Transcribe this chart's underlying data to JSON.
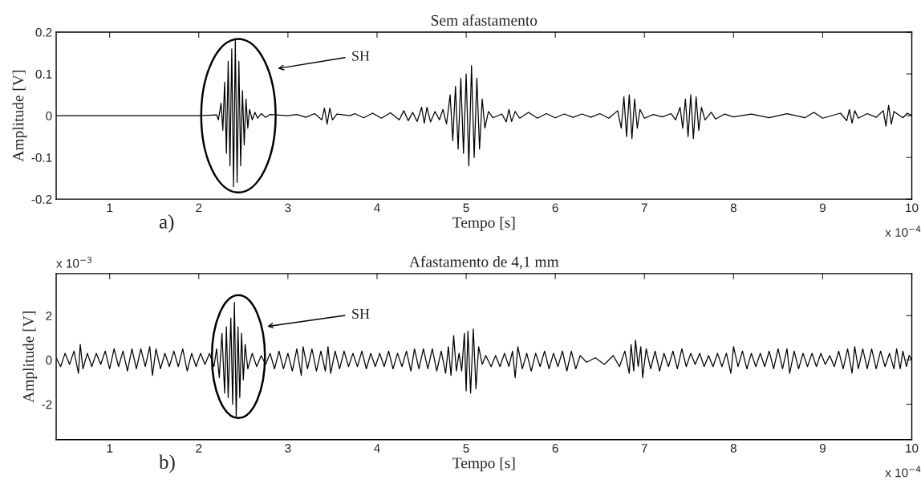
{
  "chart_data": [
    {
      "type": "line",
      "title": "Sem afastamento",
      "xlabel": "Tempo [s]",
      "ylabel": "Amplitude [V]",
      "xlim": [
        0.4,
        10
      ],
      "xticks": [
        1,
        2,
        3,
        4,
        5,
        6,
        7,
        8,
        9,
        10
      ],
      "ylim": [
        -0.2,
        0.2
      ],
      "yticks": [
        -0.2,
        -0.1,
        0,
        0.1,
        0.2
      ],
      "grid": false,
      "legend": false,
      "annotations": [
        "a)",
        "x 10$^{−4}$",
        "SH"
      ],
      "series": [
        {
          "color": "#000000",
          "x": [
            0.4,
            2.0,
            2.2,
            2.22,
            2.25,
            2.27,
            2.29,
            2.31,
            2.33,
            2.35,
            2.37,
            2.39,
            2.41,
            2.43,
            2.45,
            2.47,
            2.49,
            2.51,
            2.53,
            2.55,
            2.57,
            2.6,
            2.63,
            2.66,
            2.7,
            2.75,
            2.8,
            3.0,
            3.1,
            3.2,
            3.3,
            3.38,
            3.41,
            3.44,
            3.47,
            3.5,
            3.55,
            3.7,
            3.75,
            3.85,
            3.95,
            4.05,
            4.15,
            4.25,
            4.3,
            4.35,
            4.4,
            4.45,
            4.5,
            4.53,
            4.56,
            4.6,
            4.65,
            4.7,
            4.74,
            4.78,
            4.82,
            4.85,
            4.88,
            4.91,
            4.94,
            4.97,
            5.0,
            5.03,
            5.06,
            5.09,
            5.12,
            5.15,
            5.18,
            5.21,
            5.25,
            5.3,
            5.4,
            5.45,
            5.48,
            5.51,
            5.55,
            5.6,
            5.7,
            5.8,
            5.9,
            6.0,
            6.1,
            6.2,
            6.3,
            6.4,
            6.5,
            6.6,
            6.7,
            6.74,
            6.77,
            6.8,
            6.83,
            6.86,
            6.89,
            6.92,
            6.95,
            7.0,
            7.1,
            7.2,
            7.3,
            7.35,
            7.4,
            7.43,
            7.46,
            7.49,
            7.52,
            7.55,
            7.58,
            7.61,
            7.64,
            7.68,
            7.75,
            7.8,
            7.9,
            8.0,
            8.2,
            8.4,
            8.6,
            8.8,
            8.9,
            9.0,
            9.2,
            9.27,
            9.3,
            9.33,
            9.36,
            9.4,
            9.5,
            9.6,
            9.68,
            9.71,
            9.74,
            9.77,
            9.8,
            9.9,
            9.95,
            10
          ],
          "values": [
            0,
            0,
            0.002,
            -0.01,
            0.03,
            -0.035,
            0.08,
            -0.09,
            0.13,
            -0.12,
            0.16,
            -0.17,
            0.18,
            -0.16,
            0.13,
            -0.12,
            0.06,
            -0.07,
            0.04,
            -0.03,
            0.015,
            -0.01,
            0.008,
            -0.006,
            0.005,
            -0.004,
            0.003,
            0,
            0.003,
            -0.004,
            0.005,
            -0.01,
            0.018,
            -0.02,
            0.018,
            -0.01,
            0.004,
            0,
            0.005,
            -0.005,
            0.006,
            -0.006,
            0.007,
            -0.01,
            0.012,
            -0.012,
            0.008,
            -0.014,
            0.02,
            -0.018,
            0.02,
            -0.015,
            0.01,
            -0.01,
            0.015,
            -0.02,
            0.05,
            -0.06,
            0.07,
            -0.08,
            0.09,
            -0.09,
            0.1,
            -0.12,
            0.12,
            -0.1,
            0.09,
            -0.08,
            0.04,
            -0.03,
            0.01,
            -0.005,
            0.004,
            -0.015,
            0.015,
            -0.014,
            0.01,
            -0.006,
            0.008,
            -0.006,
            0.005,
            -0.005,
            0.004,
            -0.004,
            0.004,
            -0.004,
            0.005,
            -0.006,
            0.012,
            -0.03,
            0.045,
            -0.05,
            0.05,
            -0.055,
            0.04,
            -0.03,
            0.015,
            -0.006,
            0.003,
            -0.003,
            0.005,
            -0.01,
            0.02,
            -0.03,
            0.04,
            -0.05,
            0.05,
            -0.055,
            0.045,
            -0.035,
            0.02,
            -0.01,
            0.008,
            -0.008,
            0.004,
            -0.003,
            0.004,
            -0.005,
            0.005,
            -0.005,
            0.008,
            -0.006,
            0.006,
            -0.012,
            0.015,
            -0.018,
            0.012,
            -0.006,
            0.005,
            -0.004,
            0.012,
            -0.025,
            0.025,
            -0.02,
            0.01,
            -0.005,
            0.006,
            0
          ]
        }
      ]
    },
    {
      "type": "line",
      "title": "Afastamento de 4,1 mm",
      "xlabel": "Tempo [s]",
      "ylabel": "Amplitude [V]",
      "xlim": [
        0.4,
        10
      ],
      "xticks": [
        1,
        2,
        3,
        4,
        5,
        6,
        7,
        8,
        9,
        10
      ],
      "ylim": [
        -3.6,
        3.9
      ],
      "yticks": [
        -2,
        0,
        2
      ],
      "grid": false,
      "legend": false,
      "annotations": [
        "b)",
        "x 10$^{−4}$",
        "x 10$^{−3}$",
        "SH"
      ],
      "series": [
        {
          "color": "#000000",
          "x": [
            0.4,
            0.45,
            0.5,
            0.55,
            0.6,
            0.65,
            0.67,
            0.7,
            0.75,
            0.8,
            0.85,
            0.9,
            0.95,
            1.0,
            1.05,
            1.1,
            1.15,
            1.2,
            1.25,
            1.3,
            1.35,
            1.4,
            1.45,
            1.48,
            1.52,
            1.57,
            1.62,
            1.67,
            1.72,
            1.77,
            1.82,
            1.87,
            1.92,
            1.97,
            2.02,
            2.07,
            2.12,
            2.17,
            2.2,
            2.23,
            2.26,
            2.29,
            2.31,
            2.33,
            2.36,
            2.38,
            2.4,
            2.42,
            2.44,
            2.46,
            2.48,
            2.5,
            2.52,
            2.55,
            2.6,
            2.65,
            2.7,
            2.75,
            2.8,
            2.85,
            2.9,
            2.95,
            3.0,
            3.05,
            3.1,
            3.15,
            3.17,
            3.22,
            3.27,
            3.32,
            3.37,
            3.42,
            3.45,
            3.48,
            3.53,
            3.58,
            3.63,
            3.68,
            3.73,
            3.78,
            3.83,
            3.88,
            3.93,
            3.98,
            4.03,
            4.08,
            4.13,
            4.18,
            4.23,
            4.28,
            4.33,
            4.38,
            4.42,
            4.47,
            4.52,
            4.57,
            4.62,
            4.67,
            4.72,
            4.77,
            4.8,
            4.83,
            4.86,
            4.89,
            4.92,
            4.95,
            4.98,
            5.0,
            5.02,
            5.05,
            5.08,
            5.11,
            5.14,
            5.18,
            5.22,
            5.28,
            5.33,
            5.38,
            5.43,
            5.48,
            5.52,
            5.55,
            5.58,
            5.63,
            5.68,
            5.73,
            5.78,
            5.83,
            5.88,
            5.93,
            5.98,
            6.03,
            6.08,
            6.13,
            6.18,
            6.23,
            6.28,
            6.35,
            6.45,
            6.55,
            6.65,
            6.72,
            6.78,
            6.83,
            6.85,
            6.88,
            6.9,
            6.93,
            6.96,
            6.98,
            7.02,
            7.07,
            7.12,
            7.17,
            7.22,
            7.27,
            7.32,
            7.37,
            7.42,
            7.47,
            7.52,
            7.57,
            7.62,
            7.67,
            7.72,
            7.77,
            7.82,
            7.87,
            7.92,
            7.97,
            8.0,
            8.05,
            8.1,
            8.15,
            8.2,
            8.25,
            8.3,
            8.35,
            8.4,
            8.45,
            8.5,
            8.55,
            8.6,
            8.63,
            8.68,
            8.73,
            8.78,
            8.83,
            8.88,
            8.93,
            8.98,
            9.03,
            9.08,
            9.13,
            9.18,
            9.23,
            9.28,
            9.33,
            9.36,
            9.4,
            9.45,
            9.5,
            9.55,
            9.6,
            9.65,
            9.7,
            9.75,
            9.8,
            9.83,
            9.87,
            9.9,
            9.94,
            9.97,
            10
          ],
          "values": [
            0.1,
            -0.3,
            0.3,
            -0.2,
            0.4,
            -0.6,
            0.7,
            -0.4,
            0.3,
            -0.3,
            0.3,
            -0.2,
            0.4,
            -0.4,
            0.5,
            -0.3,
            0.4,
            -0.5,
            0.5,
            -0.4,
            0.5,
            -0.3,
            0.6,
            -0.7,
            0.5,
            -0.4,
            0.3,
            -0.3,
            0.4,
            -0.3,
            0.5,
            -0.5,
            0.3,
            -0.3,
            0.3,
            -0.2,
            0.3,
            -0.3,
            0.5,
            -0.8,
            1.2,
            -1.5,
            1.5,
            -1.7,
            1.9,
            -2.0,
            2.6,
            -2.6,
            1.5,
            -1.7,
            1.2,
            -0.9,
            0.7,
            -0.4,
            0.3,
            -0.3,
            0.2,
            -0.2,
            0.3,
            -0.4,
            0.4,
            -0.4,
            0.3,
            -0.5,
            0.5,
            -0.7,
            0.6,
            -0.4,
            0.5,
            -0.5,
            0.4,
            -0.5,
            0.6,
            -0.6,
            0.4,
            -0.4,
            0.4,
            -0.3,
            0.3,
            -0.3,
            0.4,
            -0.4,
            0.3,
            -0.3,
            0.3,
            -0.3,
            0.4,
            -0.4,
            0.3,
            -0.3,
            0.4,
            -0.5,
            0.5,
            -0.4,
            0.5,
            -0.4,
            0.5,
            -0.5,
            0.4,
            -0.6,
            0.6,
            -0.7,
            1.1,
            -0.5,
            0.3,
            -0.5,
            1.2,
            -1.4,
            1.3,
            -1.5,
            1.4,
            -1.3,
            0.6,
            -0.2,
            0.2,
            -0.3,
            0.2,
            -0.3,
            0.3,
            -0.3,
            0.4,
            -0.8,
            0.6,
            -0.4,
            0.3,
            -0.5,
            0.3,
            -0.3,
            0.4,
            -0.4,
            0.3,
            -0.3,
            0.4,
            -0.5,
            0.4,
            -0.4,
            0.2,
            -0.1,
            0.1,
            -0.2,
            0.2,
            -0.3,
            0.4,
            -0.6,
            0.7,
            -0.5,
            0.9,
            -0.3,
            0.6,
            -0.8,
            0.5,
            -0.4,
            0.4,
            -0.5,
            0.3,
            -0.3,
            0.4,
            -0.4,
            0.5,
            -0.3,
            0.3,
            -0.2,
            0.3,
            -0.3,
            0.2,
            -0.3,
            0.3,
            -0.3,
            0.3,
            -0.6,
            0.6,
            -0.3,
            0.4,
            -0.4,
            0.3,
            -0.3,
            0.3,
            -0.3,
            0.4,
            -0.4,
            0.5,
            -0.4,
            0.5,
            -0.6,
            0.4,
            -0.4,
            0.3,
            -0.3,
            0.3,
            -0.3,
            0.3,
            -0.2,
            0.2,
            -0.3,
            0.4,
            -0.4,
            0.5,
            -0.6,
            0.6,
            -0.4,
            0.5,
            -0.4,
            0.5,
            -0.4,
            0.4,
            -0.3,
            0.3,
            -0.4,
            0.5,
            -0.4,
            0.4,
            -0.3,
            0.2,
            0
          ]
        }
      ]
    }
  ]
}
